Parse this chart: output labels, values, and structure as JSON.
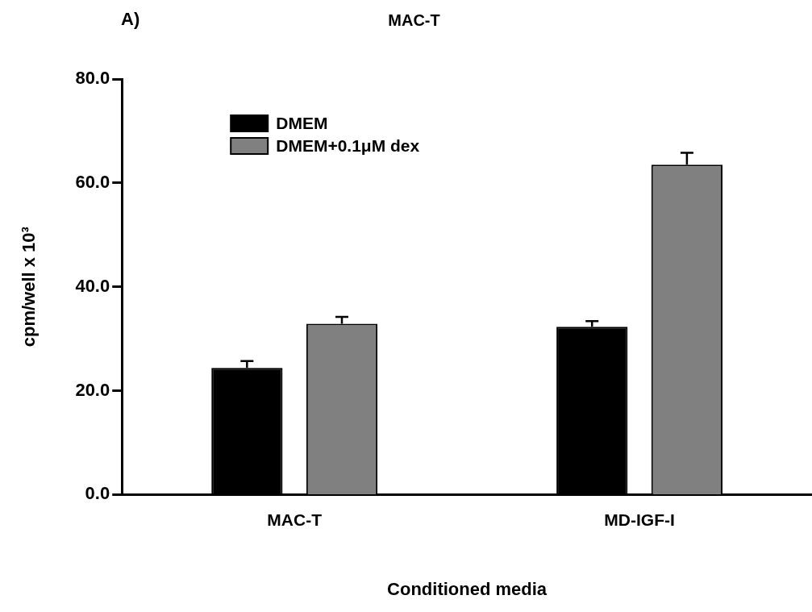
{
  "chart_data": {
    "type": "bar",
    "title": "MAC-T",
    "xlabel": "Conditioned media",
    "ylabel": "cpm/well x 10³",
    "categories": [
      "MAC-T",
      "MD-IGF-I"
    ],
    "series": [
      {
        "name": "DMEM",
        "color": "#000000",
        "values": [
          24.4,
          32.3
        ],
        "errors": [
          1.3,
          1.1
        ]
      },
      {
        "name": "DMEM+0.1μM dex",
        "color": "#808080",
        "values": [
          32.9,
          63.5
        ],
        "errors": [
          1.3,
          2.3
        ]
      }
    ],
    "ylim": [
      0,
      80
    ],
    "yticks": [
      {
        "value": 0,
        "label": "0.0"
      },
      {
        "value": 20,
        "label": "20.0"
      },
      {
        "value": 40,
        "label": "40.0"
      },
      {
        "value": 60,
        "label": "60.0"
      },
      {
        "value": 80,
        "label": "80.0"
      }
    ],
    "grid": false,
    "legend": "top left",
    "annotations": [
      "A)"
    ]
  }
}
